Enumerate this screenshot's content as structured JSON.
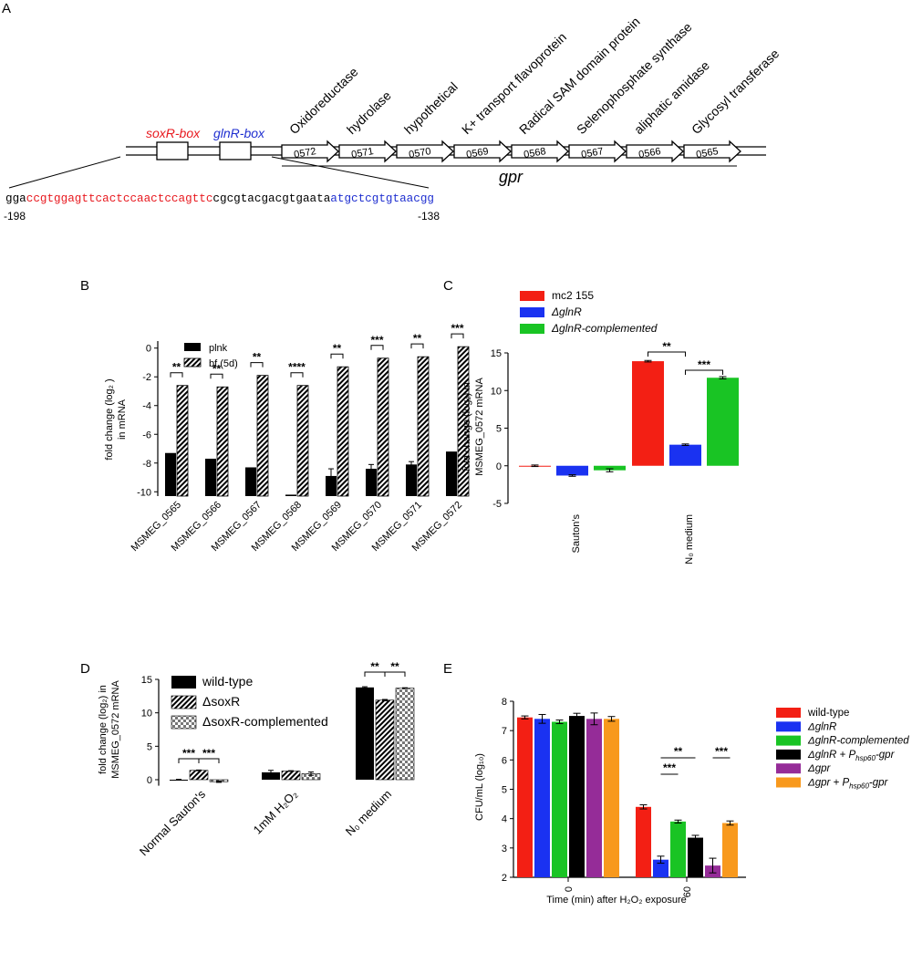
{
  "panels": {
    "a": "A",
    "b": "B",
    "c": "C",
    "d": "D",
    "e": "E"
  },
  "panel_a": {
    "box_labels": [
      "soxR-box",
      "glnR-box"
    ],
    "box_colors": [
      "#e8191f",
      "#1f2fd0"
    ],
    "genes": [
      {
        "id": "0572",
        "product": "Oxidoreductase"
      },
      {
        "id": "0571",
        "product": "hydrolase"
      },
      {
        "id": "0570",
        "product": "hypothetical"
      },
      {
        "id": "0569",
        "product": "K+ transport flavoprotein"
      },
      {
        "id": "0568",
        "product": "Radical SAM domain protein"
      },
      {
        "id": "0567",
        "product": "Selenophosphate synthase"
      },
      {
        "id": "0566",
        "product": "aliphatic amidase"
      },
      {
        "id": "0565",
        "product": "Glycosyl transferase"
      }
    ],
    "operon_label": "gpr",
    "sequence": {
      "prefix": "gga",
      "soxr_part": "ccgtggagttcactccaactccagttc",
      "middle": "cgcgtacgacgtgaata",
      "glnr_part": "atgctcgtgtaacgg"
    },
    "pos_start": "-198",
    "pos_end": "-138"
  },
  "chart_data": [
    {
      "panel": "B",
      "type": "bar",
      "ylabel_lines": [
        "fold change (log₂ )",
        "in mRNA"
      ],
      "ylim": [
        -10,
        0
      ],
      "yticks": [
        -10,
        -8,
        -6,
        -4,
        -2,
        0
      ],
      "categories": [
        "MSMEG_0565",
        "MSMEG_0566",
        "MSMEG_0567",
        "MSMEG_0568",
        "MSMEG_0569",
        "MSMEG_0570",
        "MSMEG_0571",
        "MSMEG_0572"
      ],
      "series": [
        {
          "name": "plnk",
          "values": [
            -7.3,
            -7.7,
            -8.3,
            -10.2,
            -8.9,
            -8.4,
            -8.1,
            -7.2
          ],
          "errors": [
            0,
            0,
            0,
            0,
            0.5,
            0.3,
            0.2,
            0
          ]
        },
        {
          "name": "bf (5d)",
          "values": [
            -2.6,
            -2.7,
            -1.9,
            -2.6,
            -1.3,
            -0.7,
            -0.6,
            0.1
          ],
          "errors": [
            0,
            0,
            0,
            0,
            0,
            0,
            0,
            0
          ]
        }
      ],
      "significance": [
        "**",
        "**",
        "**",
        "****",
        "**",
        "***",
        "**",
        "***"
      ],
      "legend": "top-left"
    },
    {
      "panel": "C",
      "type": "bar",
      "ylabel_lines": [
        "fold change (log₂) in",
        "MSMEG_0572 mRNA"
      ],
      "ylim": [
        -5,
        15
      ],
      "yticks": [
        -5,
        0,
        5,
        10,
        15
      ],
      "categories": [
        "Sauton's",
        "N₀ medium"
      ],
      "series": [
        {
          "name": "mc2 155",
          "color": "#f31f14",
          "values": [
            0.0,
            13.9
          ],
          "errors": [
            0.1,
            0.1
          ]
        },
        {
          "name": "ΔglnR",
          "color": "#1a32f1",
          "values": [
            -1.3,
            2.8
          ],
          "errors": [
            0.1,
            0.1
          ]
        },
        {
          "name": "ΔglnR-complemented",
          "color": "#19c424",
          "values": [
            -0.6,
            11.7
          ],
          "errors": [
            0.2,
            0.15
          ]
        }
      ],
      "significance": [
        "**",
        "***"
      ],
      "legend": "top"
    },
    {
      "panel": "D",
      "type": "bar",
      "ylabel_lines": [
        "fold change (log₂) in",
        "MSMEG_0572 mRNA"
      ],
      "ylim": [
        -0.9,
        15
      ],
      "yticks": [
        0,
        5,
        10,
        15
      ],
      "categories": [
        "Normal Sauton's",
        "1mM H₂O₂",
        "N₀ medium"
      ],
      "series": [
        {
          "name": "wild-type",
          "values": [
            0.0,
            1.1,
            13.8
          ],
          "errors": [
            0.05,
            0.3,
            0.1
          ]
        },
        {
          "name": "ΔsoxR",
          "values": [
            1.4,
            1.3,
            11.9
          ],
          "errors": [
            0.05,
            0.05,
            0.1
          ]
        },
        {
          "name": "ΔsoxR-complemented",
          "values": [
            -0.3,
            0.9,
            13.7
          ],
          "errors": [
            0.1,
            0.25,
            0.05
          ]
        }
      ],
      "significance": [
        "***",
        "***",
        "**",
        "**"
      ],
      "legend": "top-left"
    },
    {
      "panel": "E",
      "type": "bar",
      "xlabel": "Time (min) after H₂O₂ exposure",
      "ylabel": "CFU/mL (log₁₀)",
      "ylim": [
        2,
        8
      ],
      "yticks": [
        2,
        3,
        4,
        5,
        6,
        7,
        8
      ],
      "categories": [
        "0",
        "60"
      ],
      "series": [
        {
          "name": "wild-type",
          "color": "#f31f14",
          "values": [
            7.45,
            4.4
          ],
          "errors": [
            0.05,
            0.07
          ]
        },
        {
          "name": "ΔglnR",
          "color": "#1a32f1",
          "values": [
            7.4,
            2.6
          ],
          "errors": [
            0.15,
            0.12
          ]
        },
        {
          "name": "ΔglnR-complemented",
          "color": "#19c424",
          "values": [
            7.3,
            3.9
          ],
          "errors": [
            0.06,
            0.05
          ]
        },
        {
          "name": "ΔglnR + P<sub>hsp60</sub>-gpr",
          "color": "#000000",
          "values": [
            7.5,
            3.35
          ],
          "errors": [
            0.09,
            0.08
          ]
        },
        {
          "name": "Δgpr",
          "color": "#952c98",
          "values": [
            7.4,
            2.4
          ],
          "errors": [
            0.2,
            0.25
          ]
        },
        {
          "name": "Δgpr + P<sub>hsp60</sub>-gpr",
          "color": "#f8991d",
          "values": [
            7.4,
            3.85
          ],
          "errors": [
            0.08,
            0.07
          ]
        }
      ],
      "significance": [
        "**",
        "***",
        "***"
      ],
      "legend": "right"
    }
  ]
}
